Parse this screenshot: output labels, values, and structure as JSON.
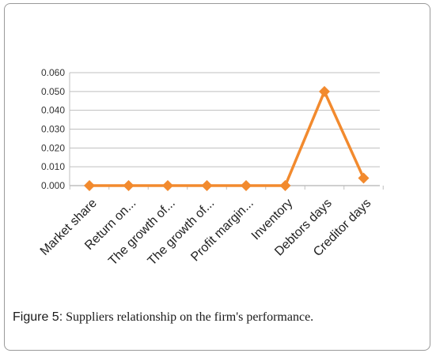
{
  "chart_data": {
    "type": "line",
    "categories": [
      "Market share",
      "Return on...",
      "The growth of...",
      "The growth of...",
      "Profit margin...",
      "Inventory",
      "Debtors days",
      "Creditor days"
    ],
    "values": [
      0.0,
      0.0,
      0.0,
      0.0,
      0.0,
      0.0,
      0.05,
      0.004
    ],
    "yticks": [
      "0.000",
      "0.010",
      "0.020",
      "0.030",
      "0.040",
      "0.050",
      "0.060"
    ],
    "ylim": [
      0,
      0.06
    ],
    "grid": true,
    "line_color": "#f28a2e",
    "marker": "diamond"
  },
  "caption": {
    "label": "Figure 5:",
    "text": "Suppliers relationship on the firm's performance."
  }
}
